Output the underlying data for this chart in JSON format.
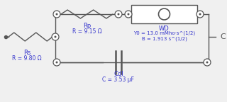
{
  "color": "#3333cc",
  "bg_color": "#f0f0f0",
  "wire_color": "#555555",
  "Rs_label": "Rs",
  "Rs_value": "R = 9.80 Ω",
  "Rp_label": "Rp",
  "Rp_value": "R = 9.15 Ω",
  "WD_label": "WD",
  "WD_value1": "Y0 = 13.0 mMho·s^(1/2)",
  "WD_value2": "B = 1.913 s^(1/2)",
  "Cdl_label": "Cdl",
  "Cdl_value": "C = 3.53 μF",
  "term_label": "C",
  "figw": 3.2,
  "figh": 1.44,
  "dpi": 100
}
